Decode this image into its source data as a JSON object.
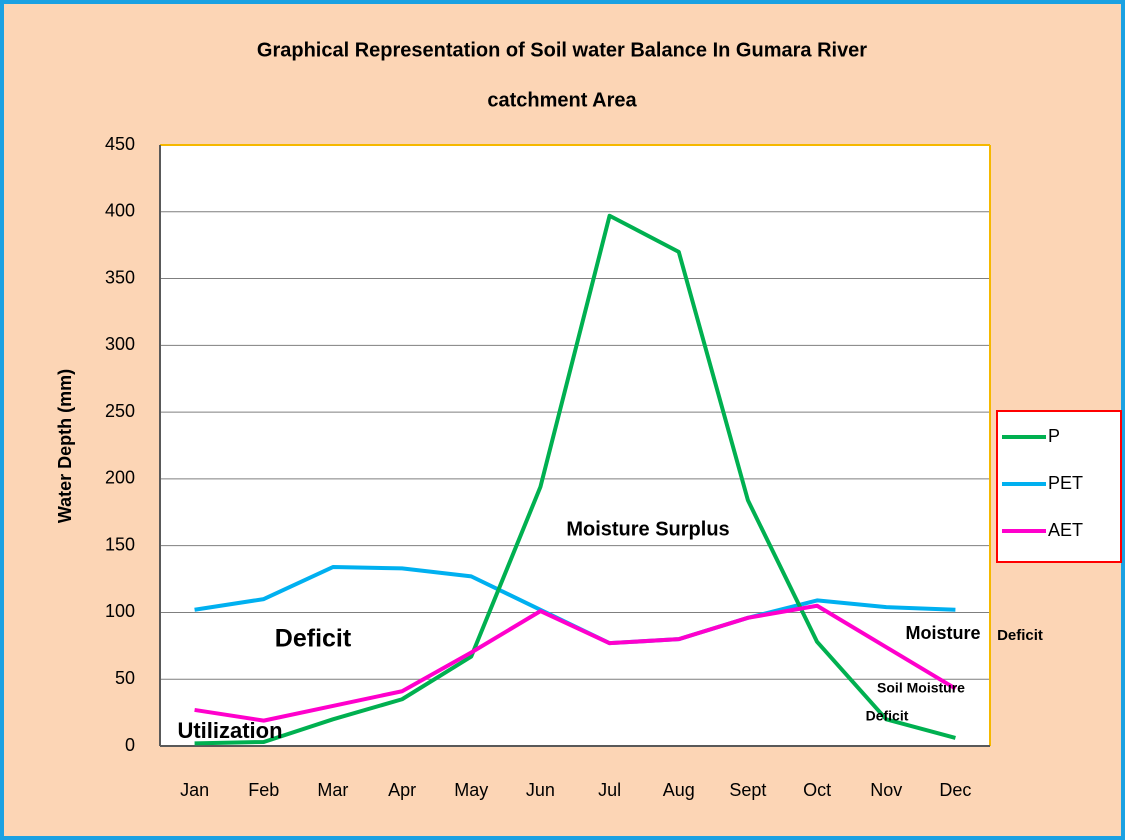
{
  "chart_data": {
    "type": "line",
    "title": [
      "Graphical Representation of Soil water Balance In Gumara River",
      "catchment  Area"
    ],
    "y_label": "Water Depth (mm)",
    "categories": [
      "Jan",
      "Feb",
      "Mar",
      "Apr",
      "May",
      "Jun",
      "Jul",
      "Aug",
      "Sept",
      "Oct",
      "Nov",
      "Dec"
    ],
    "series": [
      {
        "name": "P",
        "color": "#00b050",
        "values": [
          2,
          3,
          20,
          35,
          67,
          194,
          397,
          370,
          184,
          78,
          20,
          6
        ]
      },
      {
        "name": "PET",
        "color": "#00b0f0",
        "values": [
          102,
          110,
          134,
          133,
          127,
          102,
          77,
          80,
          96,
          109,
          104,
          102
        ]
      },
      {
        "name": "AET",
        "color": "#ff00cc",
        "values": [
          27,
          19,
          30,
          41,
          70,
          101,
          77,
          80,
          96,
          105,
          74,
          43
        ]
      }
    ],
    "ylim": [
      0,
      450
    ],
    "yticks": [
      0,
      50,
      100,
      150,
      200,
      250,
      300,
      350,
      400,
      450
    ],
    "grid": true,
    "legend": "right",
    "annotations": [
      "Moisture Surplus",
      "Deficit",
      "Moisture",
      "Deficit",
      "Soil Moisture",
      "Deficit",
      "Utilization"
    ]
  }
}
